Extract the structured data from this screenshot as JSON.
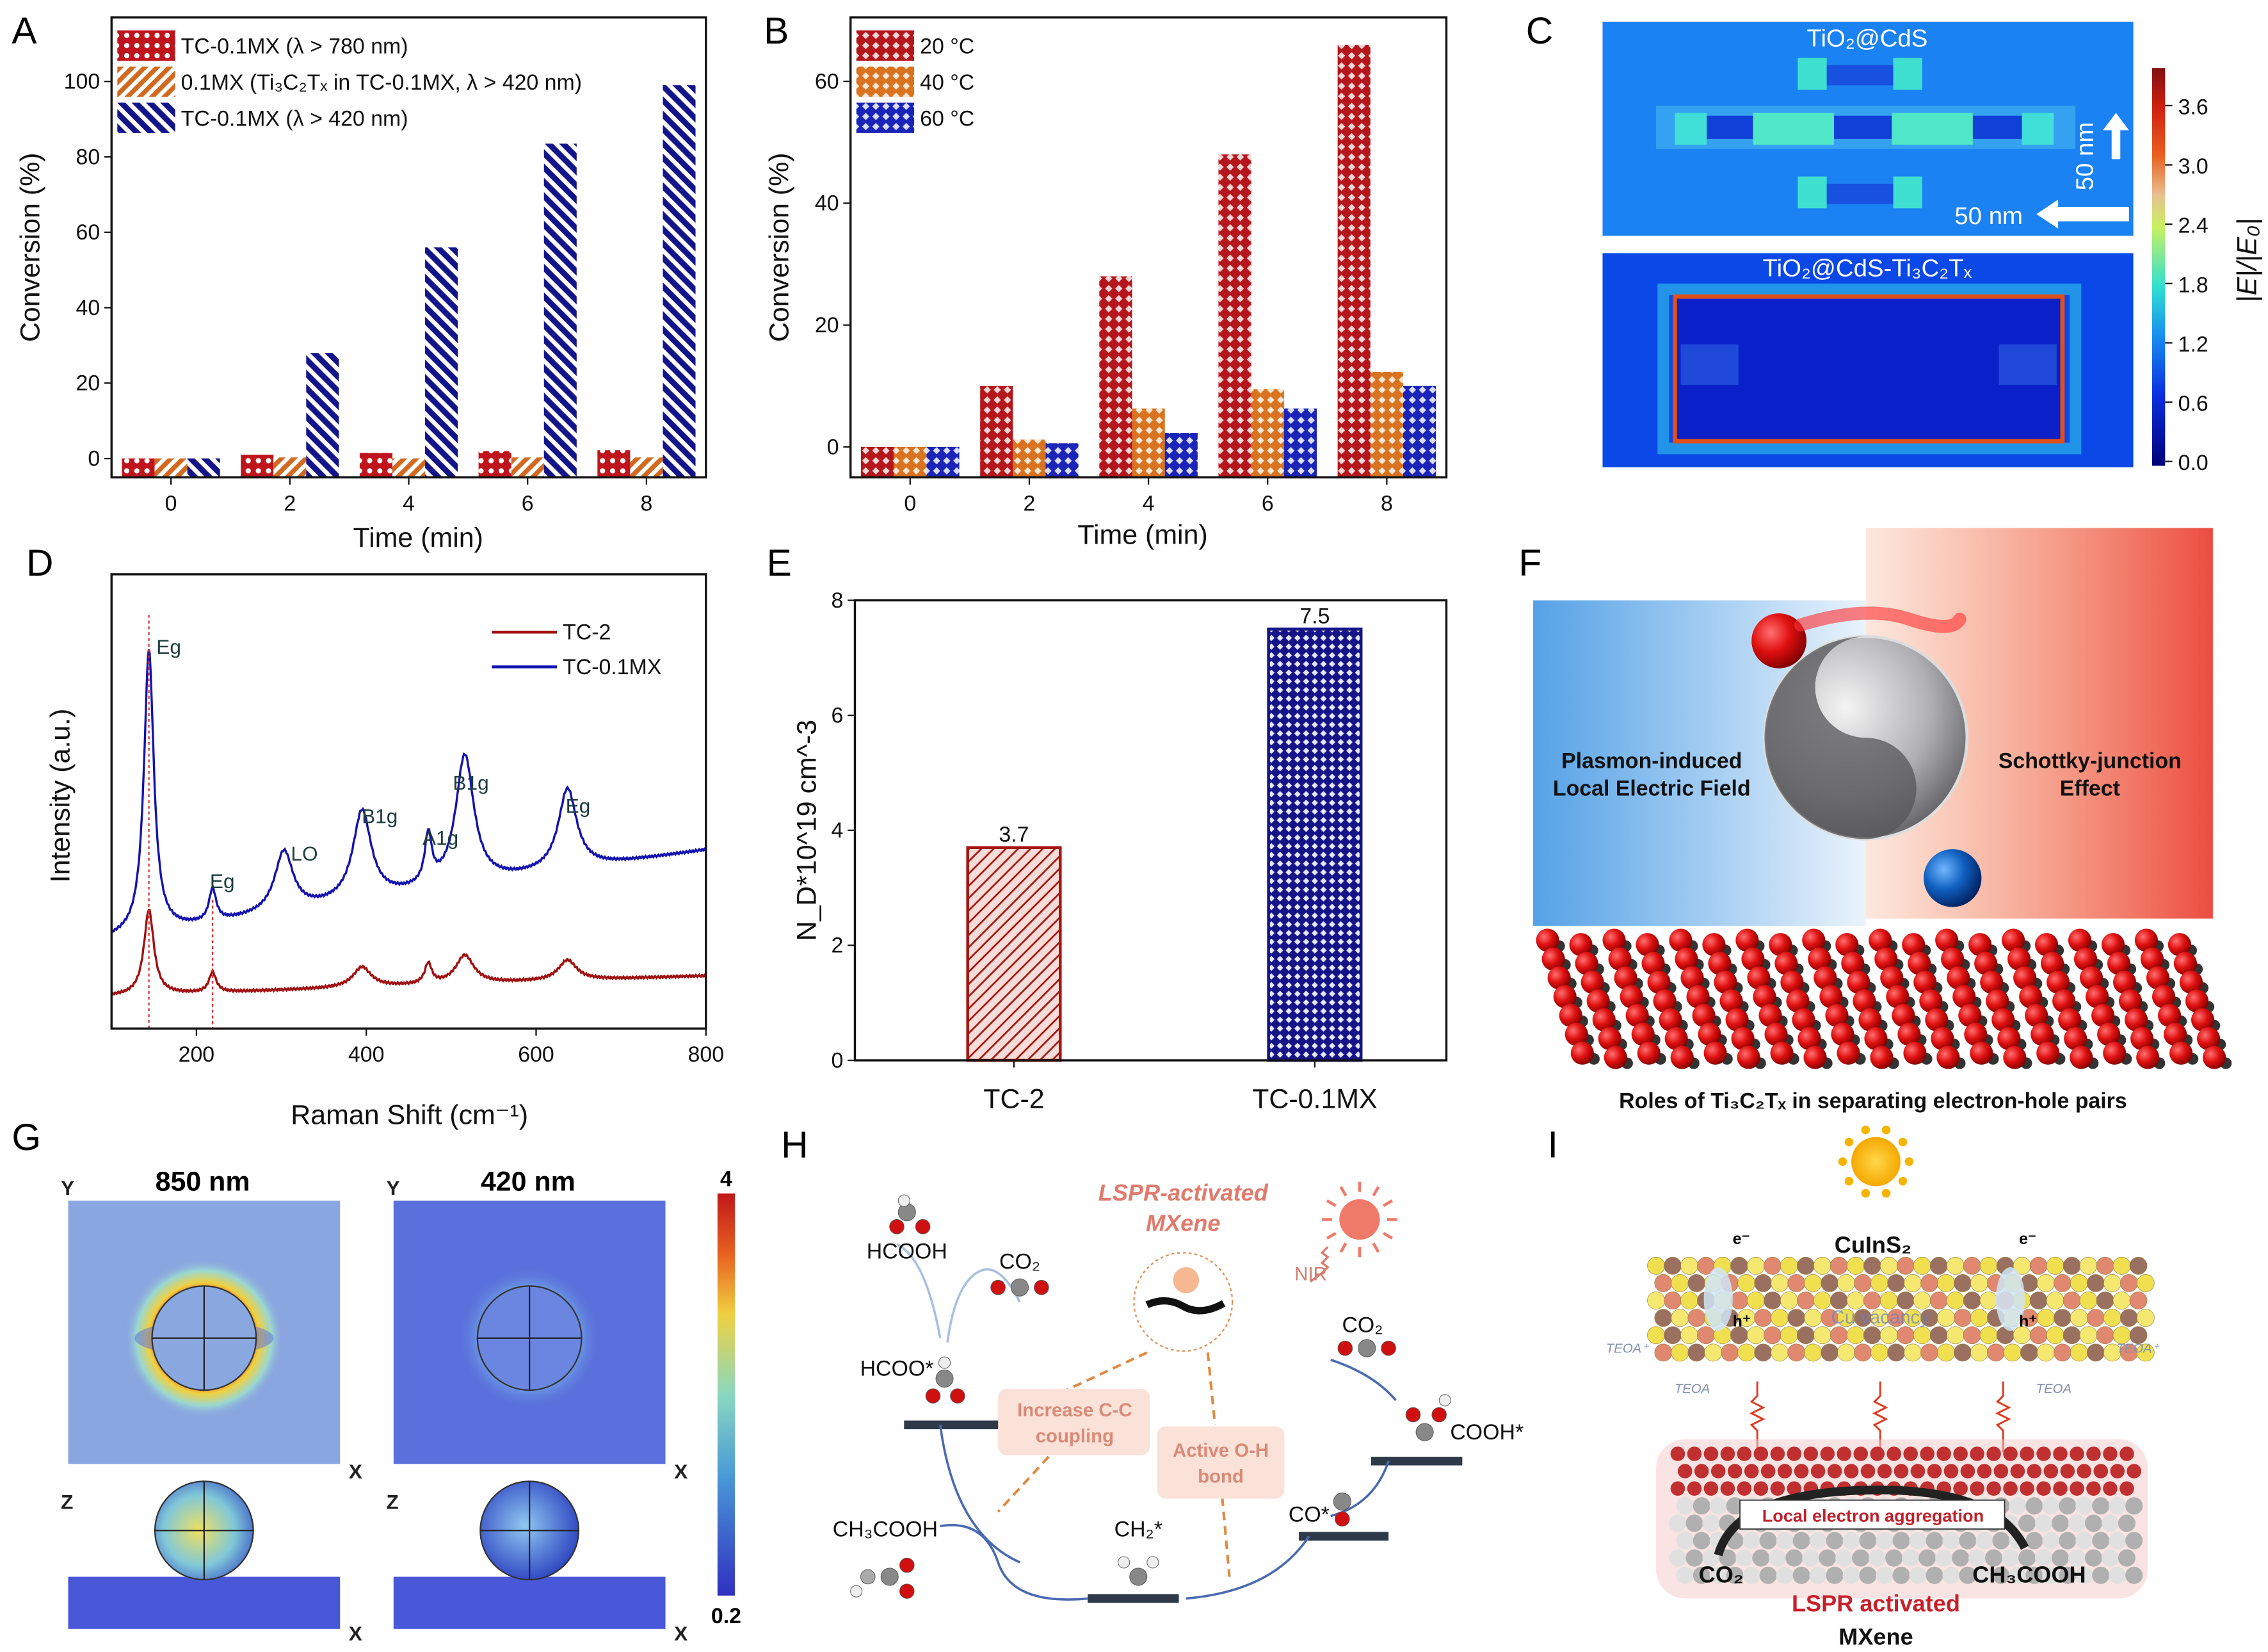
{
  "panel_labels": {
    "A": "A",
    "B": "B",
    "C": "C",
    "D": "D",
    "E": "E",
    "F": "F",
    "G": "G",
    "H": "H",
    "I": "I"
  },
  "chart_data": [
    {
      "panel": "A",
      "type": "bar",
      "categories": [
        0,
        2,
        4,
        6,
        8
      ],
      "xlabel": "Time (min)",
      "ylabel": "Conversion (%)",
      "ylim": [
        -5,
        117
      ],
      "xlim": [
        -1,
        9
      ],
      "yticks": [
        0,
        20,
        40,
        60,
        80,
        100
      ],
      "legend_position": "top-left",
      "series": [
        {
          "name": "TC-0.1MX (λ > 780 nm)",
          "color": "#c0141c",
          "pattern": "dots",
          "values": [
            0,
            1.0,
            1.5,
            2.0,
            2.2
          ]
        },
        {
          "name": "0.1MX (Ti₃C₂Tₓ in TC-0.1MX, λ > 420 nm)",
          "color": "#d2691e",
          "pattern": "diagonal",
          "values": [
            0,
            0.3,
            0,
            0.3,
            0.3
          ]
        },
        {
          "name": "TC-0.1MX (λ > 420 nm)",
          "color": "#14148a",
          "pattern": "back-diagonal",
          "values": [
            0,
            28,
            56,
            83.5,
            99
          ]
        }
      ]
    },
    {
      "panel": "B",
      "type": "bar",
      "categories": [
        0,
        2,
        4,
        6,
        8
      ],
      "xlabel": "Time (min)",
      "ylabel": "Conversion (%)",
      "ylim": [
        -5,
        70.5
      ],
      "xlim": [
        -1,
        9
      ],
      "yticks": [
        0,
        20,
        40,
        60
      ],
      "legend_position": "top-left",
      "series": [
        {
          "name": "20 °C",
          "color": "#b5161c",
          "pattern": "crosshatch",
          "values": [
            0,
            10,
            28,
            48,
            66
          ]
        },
        {
          "name": "40 °C",
          "color": "#d9731f",
          "pattern": "crosshatch",
          "values": [
            0,
            1.2,
            6.3,
            9.5,
            12.3
          ]
        },
        {
          "name": "60 °C",
          "color": "#1a24b8",
          "pattern": "crosshatch",
          "values": [
            0,
            0.6,
            2.3,
            6.3,
            10
          ]
        }
      ]
    },
    {
      "panel": "D",
      "type": "line",
      "xlabel": "Raman Shift (cm⁻¹)",
      "ylabel": "Intensity (a.u.)",
      "xlim": [
        100,
        800
      ],
      "xticks": [
        200,
        400,
        600,
        800
      ],
      "legend_position": "top-right",
      "series": [
        {
          "name": "TC-2",
          "color": "#a01010",
          "peaks": [
            {
              "x": 144,
              "height": 21
            },
            {
              "x": 219,
              "height": 5
            },
            {
              "x": 395,
              "height": 5
            },
            {
              "x": 473,
              "height": 5
            },
            {
              "x": 516,
              "height": 7
            },
            {
              "x": 637,
              "height": 5
            }
          ]
        },
        {
          "name": "TC-0.1MX",
          "color": "#1212b0",
          "peaks": [
            {
              "x": 144,
              "height": 70
            },
            {
              "x": 219,
              "height": 8
            },
            {
              "x": 303,
              "height": 15
            },
            {
              "x": 395,
              "height": 22
            },
            {
              "x": 473,
              "height": 12
            },
            {
              "x": 516,
              "height": 32
            },
            {
              "x": 637,
              "height": 20
            }
          ]
        }
      ],
      "annotations": [
        {
          "text": "Eg",
          "x": 144
        },
        {
          "text": "Eg",
          "x": 219
        },
        {
          "text": "LO",
          "x": 303
        },
        {
          "text": "B1g",
          "x": 395
        },
        {
          "text": "A1g",
          "x": 473
        },
        {
          "text": "B1g",
          "x": 516
        },
        {
          "text": "Eg",
          "x": 637
        }
      ],
      "reference_lines": [
        144,
        219
      ]
    },
    {
      "panel": "E",
      "type": "bar",
      "categories": [
        "TC-2",
        "TC-0.1MX"
      ],
      "values": [
        3.7,
        7.5
      ],
      "data_labels": [
        "3.7",
        "7.5"
      ],
      "colors": [
        "#a5140f",
        "#141488"
      ],
      "ylabel": "N_D*10^19 cm^-3",
      "ylim": [
        0,
        8
      ],
      "yticks": [
        0,
        2,
        4,
        6,
        8
      ]
    }
  ],
  "panel_c": {
    "top_title": "TiO₂@CdS",
    "bottom_title": "TiO₂@CdS-Ti₃C₂Tₓ",
    "scale_vertical": "50 nm",
    "scale_horizontal": "50 nm",
    "colorbar_label": "|E|/|E₀|",
    "colorbar_ticks": [
      "0.0",
      "0.6",
      "1.2",
      "1.8",
      "2.4",
      "3.0",
      "3.6"
    ]
  },
  "panel_f": {
    "left_text_1": "Plasmon-induced",
    "left_text_2": "Local Electric Field",
    "right_text_1": "Schottky-junction",
    "right_text_2": "Effect",
    "caption": "Roles of Ti₃C₂Tₓ in separating electron-hole pairs"
  },
  "panel_g": {
    "title_left": "850 nm",
    "title_right": "420 nm",
    "axis_y": "Y",
    "axis_x": "X",
    "axis_z": "Z",
    "colorbar_max": "4",
    "colorbar_min": "0.2"
  },
  "panel_h": {
    "title_1": "LSPR-activated",
    "title_2": "MXene",
    "nir": "NIR",
    "hcooh": "HCOOH",
    "co2_left": "CO₂",
    "hcoo": "HCOO*",
    "box1_1": "Increase C-C",
    "box1_2": "coupling",
    "box2_1": "Active O-H",
    "box2_2": "bond",
    "co2_right": "CO₂",
    "cooh": "COOH*",
    "co": "CO*",
    "ch3cooh": "CH₃COOH",
    "ch2": "CH₂*"
  },
  "panel_i": {
    "cuins2": "CuInS₂",
    "cu_vacancy": "Cu vacancy",
    "electron": "e⁻",
    "hole": "h⁺",
    "teoa_plus": "TEOA⁺",
    "teoa": "TEOA",
    "aggregation": "Local electron aggregation",
    "co2": "CO₂",
    "ch3cooh": "CH₃COOH",
    "lspr": "LSPR activated",
    "mxene": "MXene"
  }
}
